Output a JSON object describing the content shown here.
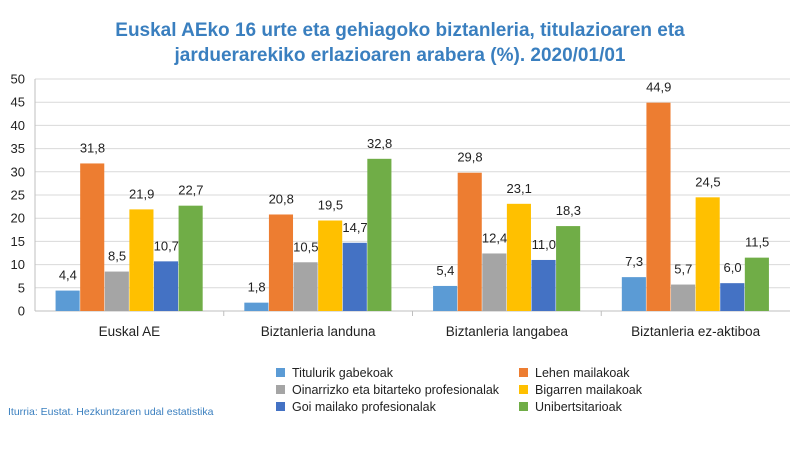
{
  "title_lines": [
    "Euskal AEko 16 urte eta gehiagoko biztanleria, titulazioaren eta",
    "jarduerarekiko erlazioaren arabera (%). 2020/01/01"
  ],
  "source": "Iturria: Eustat. Hezkuntzaren udal estatistika",
  "chart_data": {
    "type": "bar",
    "title": "Euskal AEko 16 urte eta gehiagoko biztanleria, titulazioaren eta jarduerarekiko erlazioaren arabera (%). 2020/01/01",
    "categories": [
      "Euskal AE",
      "Biztanleria landuna",
      "Biztanleria langabea",
      "Biztanleria ez-aktiboa"
    ],
    "series": [
      {
        "name": "Titulurik gabekoak",
        "values": [
          4.4,
          1.8,
          5.4,
          7.3
        ],
        "labels": [
          "4,4",
          "1,8",
          "5,4",
          "7,3"
        ],
        "color": "#5b9bd5"
      },
      {
        "name": "Lehen mailakoak",
        "values": [
          31.8,
          20.8,
          29.8,
          44.9
        ],
        "labels": [
          "31,8",
          "20,8",
          "29,8",
          "44,9"
        ],
        "color": "#ed7d31"
      },
      {
        "name": "Oinarrizko eta bitarteko profesionalak",
        "values": [
          8.5,
          10.5,
          12.4,
          5.7
        ],
        "labels": [
          "8,5",
          "10,5",
          "12,4",
          "5,7"
        ],
        "color": "#a5a5a5"
      },
      {
        "name": "Bigarren mailakoak",
        "values": [
          21.9,
          19.5,
          23.1,
          24.5
        ],
        "labels": [
          "21,9",
          "19,5",
          "23,1",
          "24,5"
        ],
        "color": "#ffc000"
      },
      {
        "name": "Goi mailako profesionalak",
        "values": [
          10.7,
          14.7,
          11.0,
          6.0
        ],
        "labels": [
          "10,7",
          "14,7",
          "11,0",
          "6,0"
        ],
        "color": "#4472c4"
      },
      {
        "name": "Unibertsitarioak",
        "values": [
          22.7,
          32.8,
          18.3,
          11.5
        ],
        "labels": [
          "22,7",
          "32,8",
          "18,3",
          "11,5"
        ],
        "color": "#70ad47"
      }
    ],
    "ylim": [
      0,
      50
    ],
    "yticks": [
      0,
      5,
      10,
      15,
      20,
      25,
      30,
      35,
      40,
      45,
      50
    ],
    "grid": true,
    "legend_position": "bottom"
  }
}
